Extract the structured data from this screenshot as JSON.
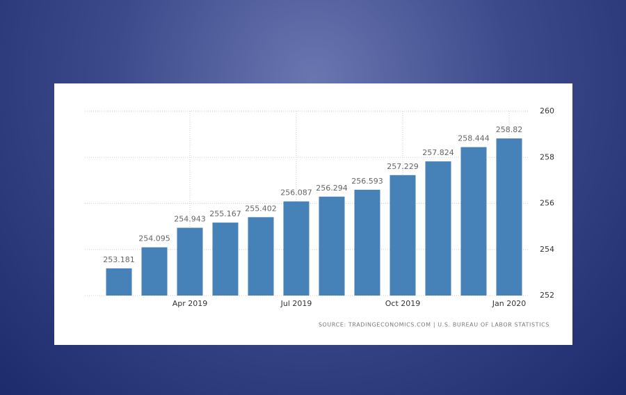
{
  "chart_data": {
    "type": "bar",
    "categories": [
      null,
      null,
      "Apr 2019",
      null,
      null,
      "Jul 2019",
      null,
      null,
      "Oct 2019",
      null,
      null,
      "Jan 2020"
    ],
    "values": [
      253.181,
      254.095,
      254.943,
      255.167,
      255.402,
      256.087,
      256.294,
      256.593,
      257.229,
      257.824,
      258.444,
      258.82
    ],
    "color": "#4682b8",
    "ylim": [
      252,
      260
    ],
    "yticks": [
      252,
      254,
      256,
      258,
      260
    ],
    "grid": true,
    "source": "SOURCE: TRADINGECONOMICS.COM  |  U.S. BUREAU OF LABOR STATISTICS"
  }
}
